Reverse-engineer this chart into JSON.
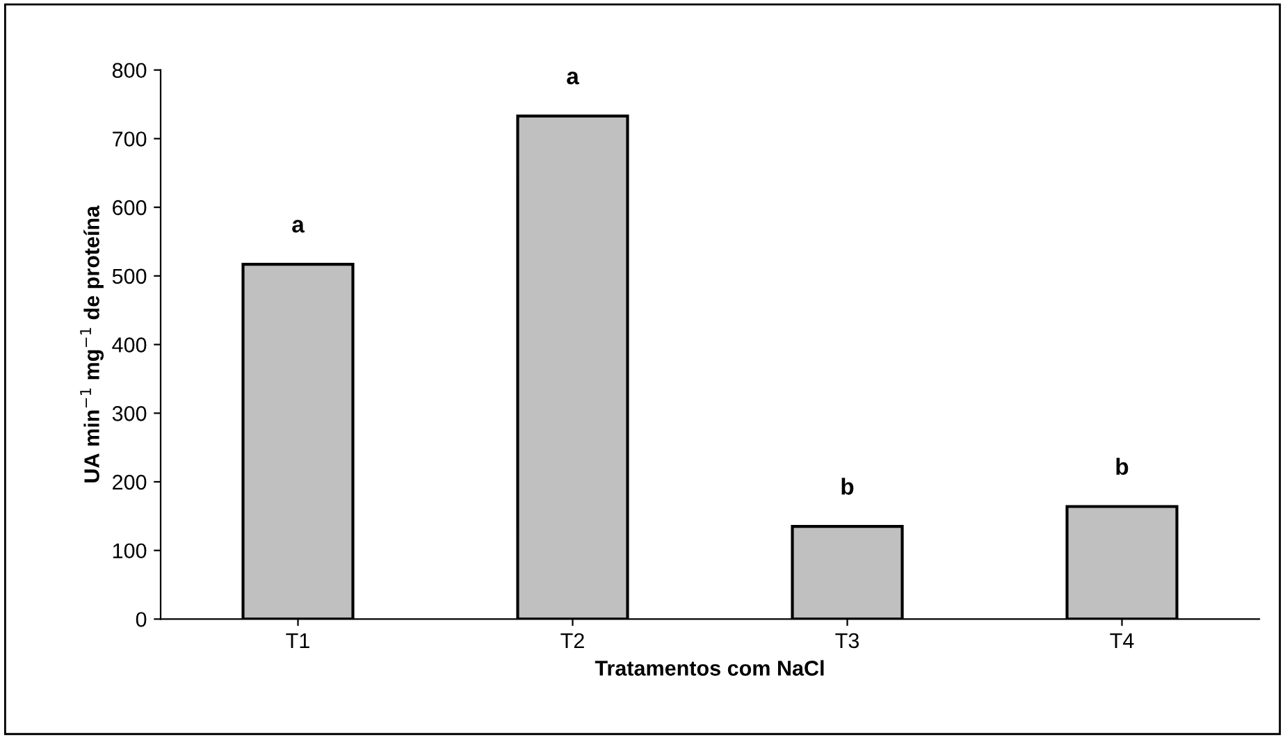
{
  "chart_data": {
    "type": "bar",
    "xlabel": "Tratamentos com NaCl",
    "ylabel": "UA min$^{−1}$ mg$^{−1}$ de proteína",
    "categories": [
      "T1",
      "T2",
      "T3",
      "T4"
    ],
    "values": [
      517,
      733,
      135,
      164
    ],
    "color": "#c0c0c0",
    "ylim": [
      0,
      800
    ],
    "yticks": [
      0,
      100,
      200,
      300,
      400,
      500,
      600,
      700,
      800
    ],
    "grid": false,
    "legend": false,
    "annotations": [
      {
        "text": "a",
        "x": "T1",
        "y": 517
      },
      {
        "text": "a",
        "x": "T2",
        "y": 733
      },
      {
        "text": "b",
        "x": "T3",
        "y": 135
      },
      {
        "text": "b",
        "x": "T4",
        "y": 164
      }
    ]
  }
}
